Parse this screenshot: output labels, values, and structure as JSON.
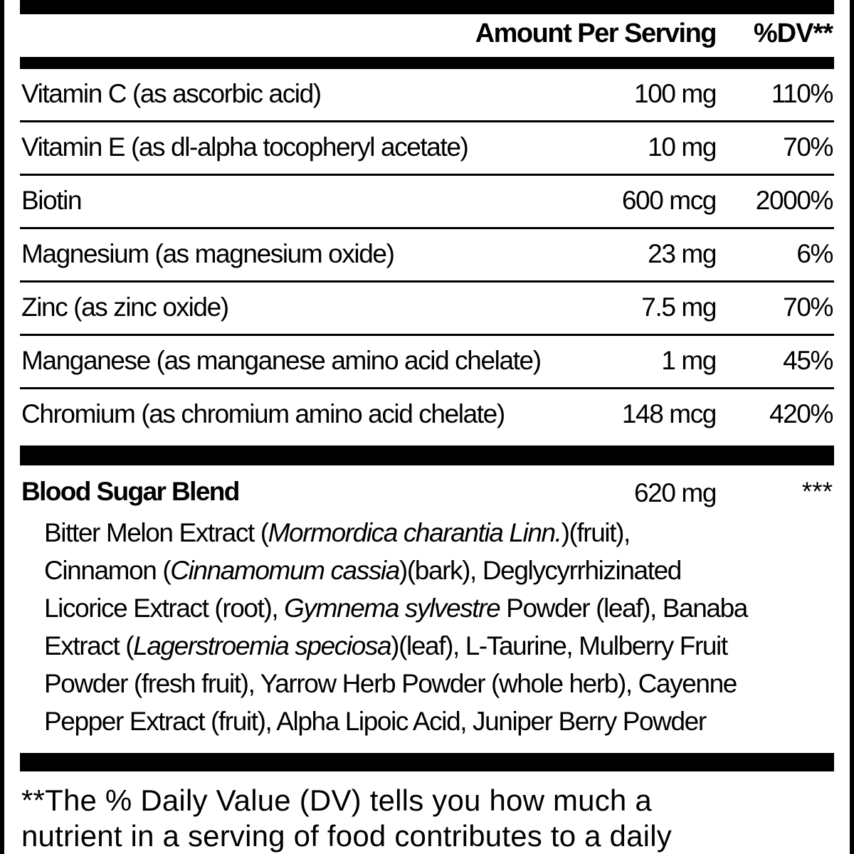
{
  "header": {
    "amount_label": "Amount Per Serving",
    "dv_label": "%DV**"
  },
  "nutrients": [
    {
      "name": "Vitamin C (as ascorbic acid)",
      "amount": "100 mg",
      "dv": "110%"
    },
    {
      "name": "Vitamin E (as dl-alpha tocopheryl acetate)",
      "amount": "10 mg",
      "dv": "70%"
    },
    {
      "name": "Biotin",
      "amount": "600 mcg",
      "dv": "2000%"
    },
    {
      "name": "Magnesium  (as magnesium oxide)",
      "amount": "23 mg",
      "dv": "6%"
    },
    {
      "name": "Zinc (as zinc oxide)",
      "amount": "7.5 mg",
      "dv": "70%"
    },
    {
      "name": "Manganese  (as manganese amino acid chelate)",
      "amount": "1 mg",
      "dv": "45%"
    },
    {
      "name": "Chromium  (as chromium amino acid chelate)",
      "amount": "148 mcg",
      "dv": "420%"
    }
  ],
  "blend": {
    "name": "Blood Sugar Blend",
    "amount": "620 mg",
    "dv": "***",
    "lines": [
      [
        {
          "t": "Bitter Melon Extract ("
        },
        {
          "t": "Mormordica charantia Linn.",
          "i": true
        },
        {
          "t": ")(fruit),"
        }
      ],
      [
        {
          "t": "Cinnamon ("
        },
        {
          "t": "Cinnamomum cassia",
          "i": true
        },
        {
          "t": ")(bark), Deglycyrrhizinated"
        }
      ],
      [
        {
          "t": "Licorice Extract (root), "
        },
        {
          "t": "Gymnema sylvestre",
          "i": true
        },
        {
          "t": " Powder (leaf), Banaba"
        }
      ],
      [
        {
          "t": "Extract ("
        },
        {
          "t": "Lagerstroemia speciosa",
          "i": true
        },
        {
          "t": ")(leaf), L-Taurine, Mulberry Fruit"
        }
      ],
      [
        {
          "t": "Powder (fresh fruit), Yarrow Herb Powder (whole herb), Cayenne"
        }
      ],
      [
        {
          "t": "Pepper Extract (fruit), Alpha Lipoic Acid, Juniper Berry Powder"
        }
      ]
    ]
  },
  "footnote": {
    "lines": [
      "**The % Daily Value (DV) tells you how much a",
      "nutrient in a serving of food contributes to a daily"
    ]
  }
}
